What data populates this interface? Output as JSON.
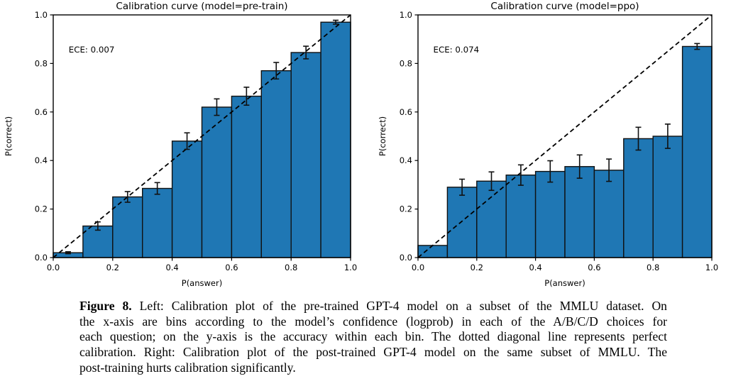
{
  "figure": {
    "caption": {
      "label": "Figure 8.",
      "lines": [
        " Left: Calibration plot of the pre-trained GPT-4 model on a subset of the MMLU dataset. On",
        "the x-axis are bins according to the model’s confidence (logprob) in each of the A/B/C/D choices for",
        "each question; on the y-axis is the accuracy within each bin. The dotted diagonal line represents perfect",
        "calibration. Right: Calibration plot of the post-trained GPT-4 model on the same subset of MMLU. The",
        "post-training hurts calibration significantly."
      ]
    }
  },
  "chart_data": [
    {
      "type": "bar",
      "title": "Calibration curve (model=pre-train)",
      "annotation": "ECE: 0.007",
      "xlabel": "P(answer)",
      "ylabel": "P(correct)",
      "xlim": [
        0.0,
        1.0
      ],
      "ylim": [
        0.0,
        1.0
      ],
      "grid": false,
      "xticks": [
        "0.0",
        "0.2",
        "0.4",
        "0.6",
        "0.8",
        "1.0"
      ],
      "yticks": [
        "0.0",
        "0.2",
        "0.4",
        "0.6",
        "0.8",
        "1.0"
      ],
      "bin_edges": [
        0.0,
        0.1,
        0.2,
        0.3,
        0.4,
        0.5,
        0.6,
        0.7,
        0.8,
        0.9,
        1.0
      ],
      "values": [
        0.02,
        0.13,
        0.25,
        0.285,
        0.48,
        0.62,
        0.665,
        0.77,
        0.845,
        0.97
      ],
      "errors": [
        0.004,
        0.017,
        0.022,
        0.024,
        0.034,
        0.034,
        0.037,
        0.034,
        0.026,
        0.008
      ],
      "diagonal": true,
      "bar_color": "#1f77b4",
      "bar_edge_color": "#111111",
      "line_color": "#000000"
    },
    {
      "type": "bar",
      "title": "Calibration curve (model=ppo)",
      "annotation": "ECE: 0.074",
      "xlabel": "P(answer)",
      "ylabel": "P(correct)",
      "xlim": [
        0.0,
        1.0
      ],
      "ylim": [
        0.0,
        1.0
      ],
      "grid": false,
      "xticks": [
        "0.0",
        "0.2",
        "0.4",
        "0.6",
        "0.8",
        "1.0"
      ],
      "yticks": [
        "0.0",
        "0.2",
        "0.4",
        "0.6",
        "0.8",
        "1.0"
      ],
      "bin_edges": [
        0.0,
        0.1,
        0.2,
        0.3,
        0.4,
        0.5,
        0.6,
        0.7,
        0.8,
        0.9,
        1.0
      ],
      "values": [
        0.05,
        0.29,
        0.315,
        0.34,
        0.355,
        0.375,
        0.36,
        0.49,
        0.5,
        0.87
      ],
      "errors": [
        0,
        0.033,
        0.038,
        0.042,
        0.044,
        0.048,
        0.046,
        0.047,
        0.05,
        0.012
      ],
      "diagonal": true,
      "bar_color": "#1f77b4",
      "bar_edge_color": "#111111",
      "line_color": "#000000"
    }
  ]
}
